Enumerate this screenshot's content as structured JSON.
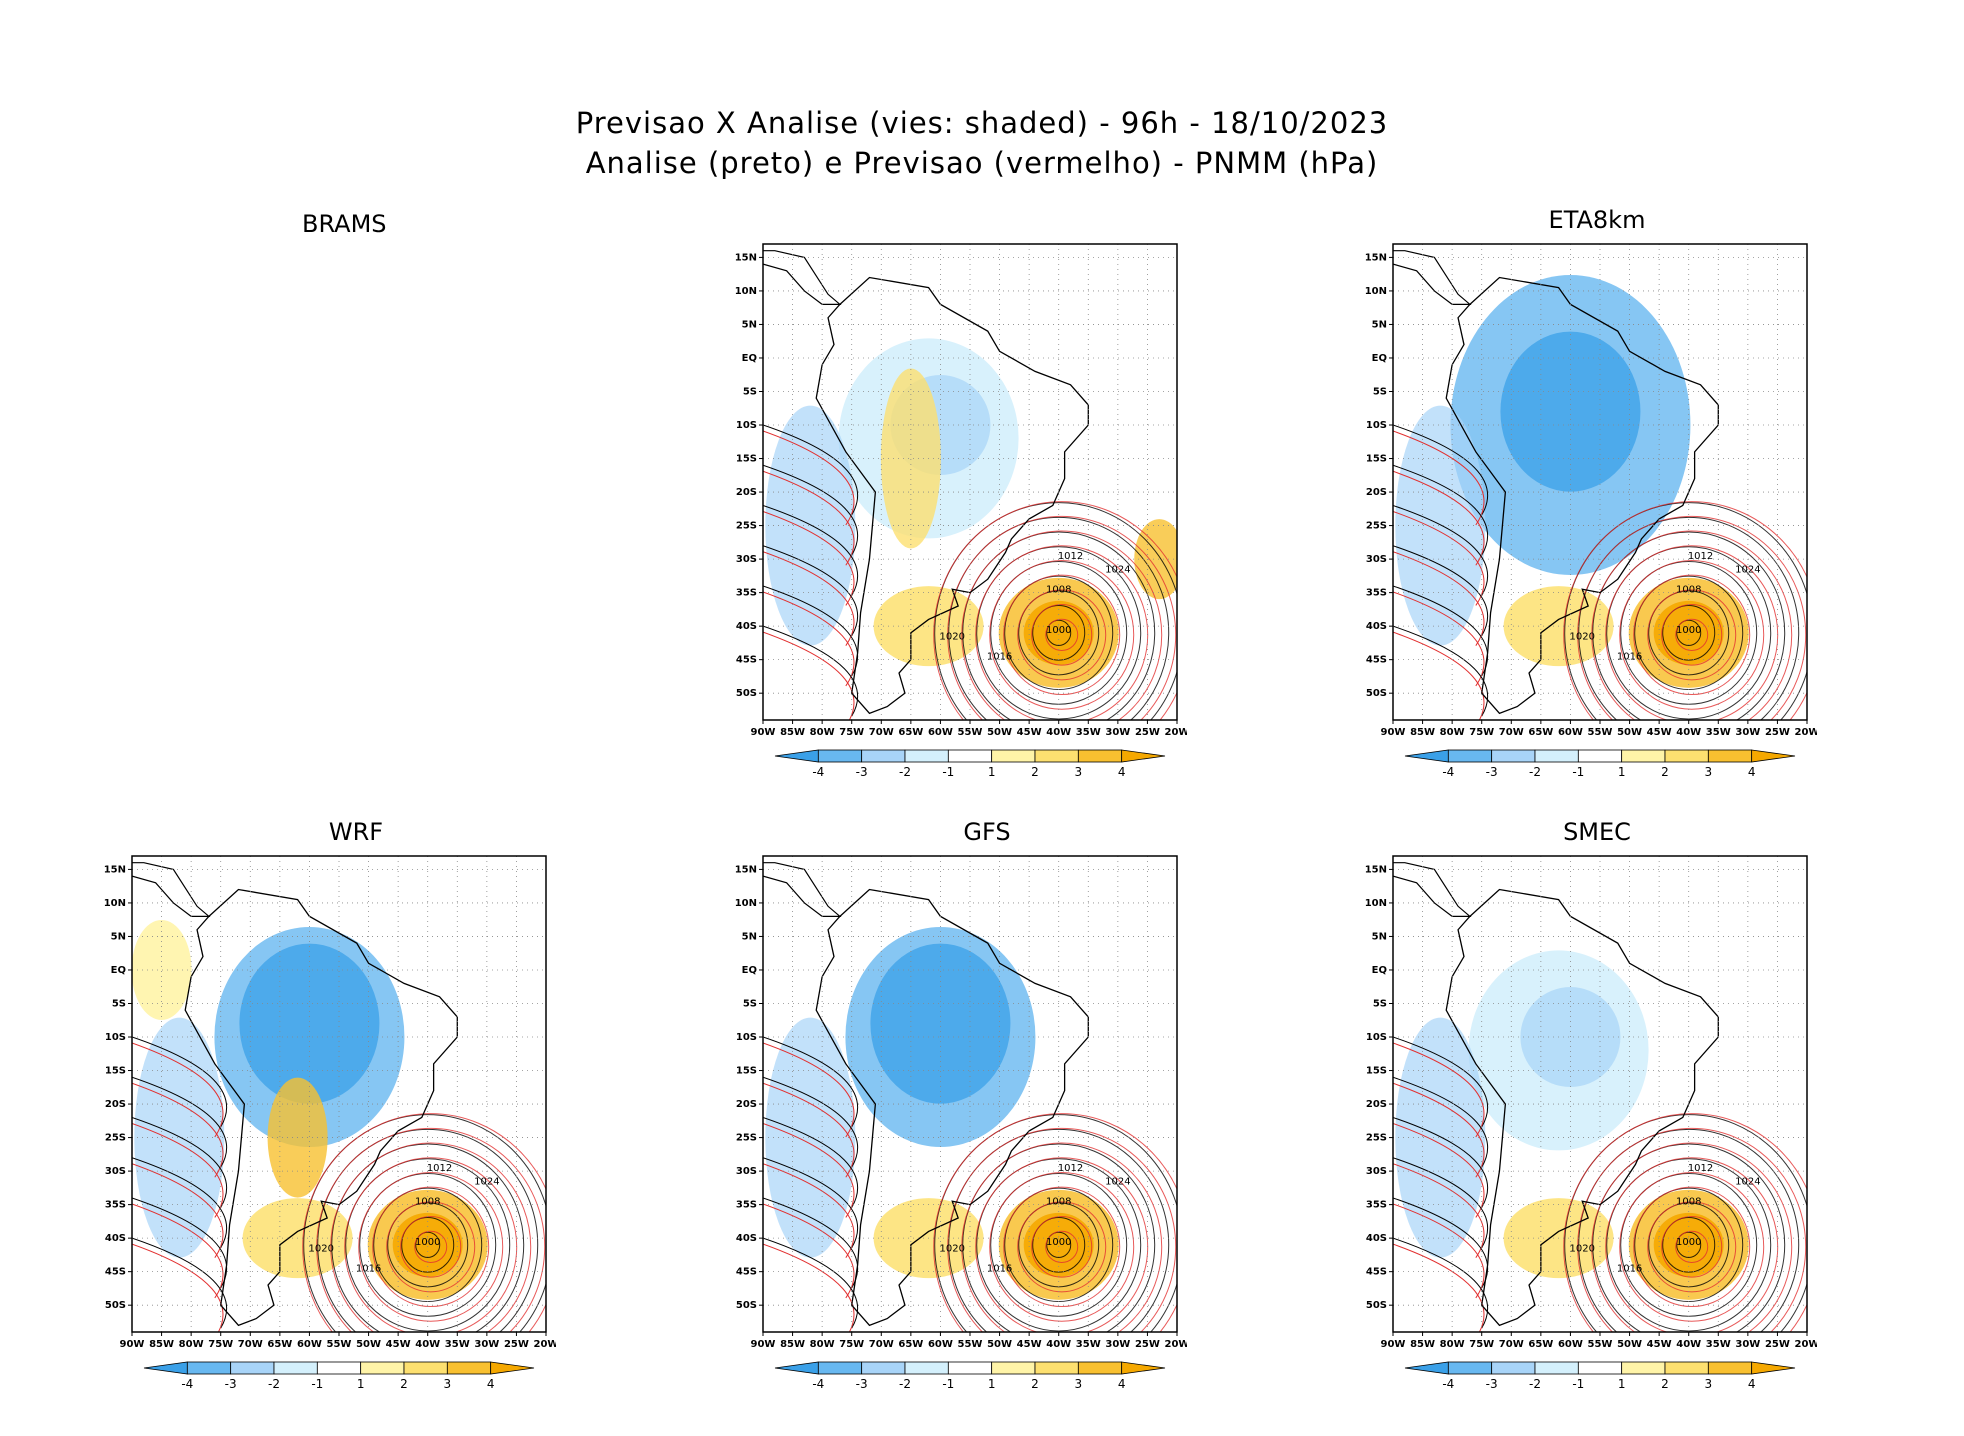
{
  "title_line1": "Previsao X Analise (vies: shaded) - 96h - 18/10/2023",
  "title_line2": "Analise (preto) e Previsao (vermelho) - PNMM (hPa)",
  "empty_panel_label": "BRAMS",
  "panels": [
    {
      "id": "eta",
      "label": "ETA8km",
      "bias": "blue-heavy"
    },
    {
      "id": "wrf",
      "label": "WRF",
      "bias": "mixed"
    },
    {
      "id": "gfs",
      "label": "GFS",
      "bias": "blue"
    },
    {
      "id": "smec",
      "label": "SMEC",
      "bias": "light"
    }
  ],
  "top_center_panel_label": "",
  "lat_ticks": [
    "15N",
    "10N",
    "5N",
    "EQ",
    "5S",
    "10S",
    "15S",
    "20S",
    "25S",
    "30S",
    "35S",
    "40S",
    "45S",
    "50S"
  ],
  "lon_ticks": [
    "90W",
    "85W",
    "80W",
    "75W",
    "70W",
    "65W",
    "60W",
    "55W",
    "50W",
    "45W",
    "40W",
    "35W",
    "30W",
    "25W",
    "20W"
  ],
  "colorbar": {
    "labels": [
      "-4",
      "-3",
      "-2",
      "-1",
      "1",
      "2",
      "3",
      "4"
    ],
    "colors": [
      "#3aa0e8",
      "#68b8f0",
      "#a8d4f8",
      "#d4f0fc",
      "#ffffff",
      "#fff4a8",
      "#fde070",
      "#f8c030",
      "#f5a800"
    ]
  },
  "isobar_labels": [
    "1000",
    "1008",
    "1012",
    "1016",
    "1020",
    "1024"
  ],
  "colors": {
    "analysis": "#000000",
    "forecast": "#e23030"
  }
}
